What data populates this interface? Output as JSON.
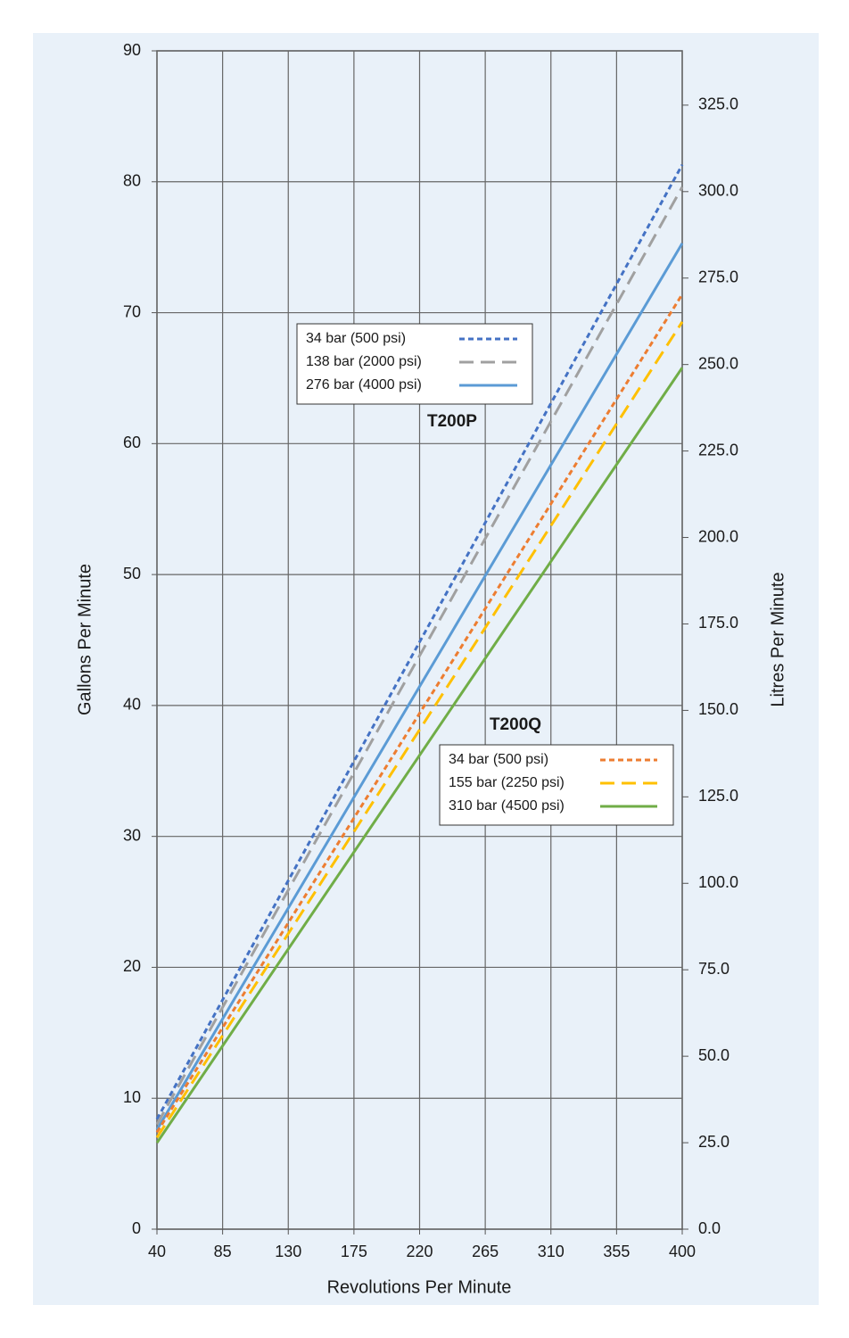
{
  "chart_data": {
    "type": "line",
    "x_label": "Revolutions Per Minute",
    "y_label": "Gallons Per Minute",
    "y2_label": "Litres Per Minute",
    "x": [
      40,
      400
    ],
    "xlim": [
      40,
      400
    ],
    "xticks": [
      40,
      85,
      130,
      175,
      220,
      265,
      310,
      355,
      400
    ],
    "ylim": [
      0,
      90
    ],
    "yticks": [
      0,
      10,
      20,
      30,
      40,
      50,
      60,
      70,
      80,
      90
    ],
    "y2lim": [
      0,
      340.7
    ],
    "y2ticks": [
      {
        "value": 0,
        "label": "0.0"
      },
      {
        "value": 25,
        "label": "25.0"
      },
      {
        "value": 50,
        "label": "50.0"
      },
      {
        "value": 75,
        "label": "75.0"
      },
      {
        "value": 100,
        "label": "100.0"
      },
      {
        "value": 125,
        "label": "125.0"
      },
      {
        "value": 150,
        "label": "150.0"
      },
      {
        "value": 175,
        "label": "175.0"
      },
      {
        "value": 200,
        "label": "200.0"
      },
      {
        "value": 225,
        "label": "225.0"
      },
      {
        "value": 250,
        "label": "250.0"
      },
      {
        "value": 275,
        "label": "275.0"
      },
      {
        "value": 300,
        "label": "300.0"
      },
      {
        "value": 325,
        "label": "325.0"
      }
    ],
    "grid": true,
    "groups": [
      {
        "name": "T200P",
        "series": [
          {
            "name": "34 bar (500 psi)",
            "color": "#4472c4",
            "dash": "short",
            "values": [
              8.4,
              81.3
            ]
          },
          {
            "name": "138 bar (2000 psi)",
            "color": "#a0a0a0",
            "dash": "long",
            "values": [
              8.0,
              79.6
            ]
          },
          {
            "name": "276 bar (4000 psi)",
            "color": "#5b9bd5",
            "dash": "solid",
            "values": [
              7.6,
              75.3
            ]
          }
        ]
      },
      {
        "name": "T200Q",
        "series": [
          {
            "name": "34 bar (500 psi)",
            "color": "#ed7d31",
            "dash": "short",
            "values": [
              7.4,
              71.4
            ]
          },
          {
            "name": "155 bar (2250 psi)",
            "color": "#ffc000",
            "dash": "long",
            "values": [
              7.0,
              69.3
            ]
          },
          {
            "name": "310 bar (4500 psi)",
            "color": "#70ad47",
            "dash": "solid",
            "values": [
              6.6,
              65.8
            ]
          }
        ]
      }
    ]
  }
}
